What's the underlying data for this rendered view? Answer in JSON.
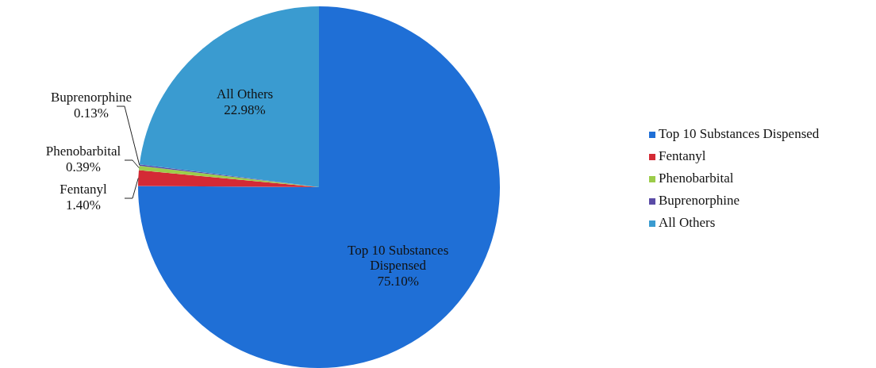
{
  "chart_data": {
    "type": "pie",
    "categories": [
      "Top 10 Substances Dispensed",
      "Fentanyl",
      "Phenobarbital",
      "Buprenorphine",
      "All Others"
    ],
    "values": [
      75.1,
      1.4,
      0.39,
      0.13,
      22.98
    ],
    "colors": [
      "#1f6fd6",
      "#d42a35",
      "#9ccc4a",
      "#5a4ba6",
      "#3a9bd0"
    ],
    "value_labels": [
      "75.10%",
      "1.40%",
      "0.39%",
      "0.13%",
      "22.98%"
    ],
    "legend": "right"
  }
}
